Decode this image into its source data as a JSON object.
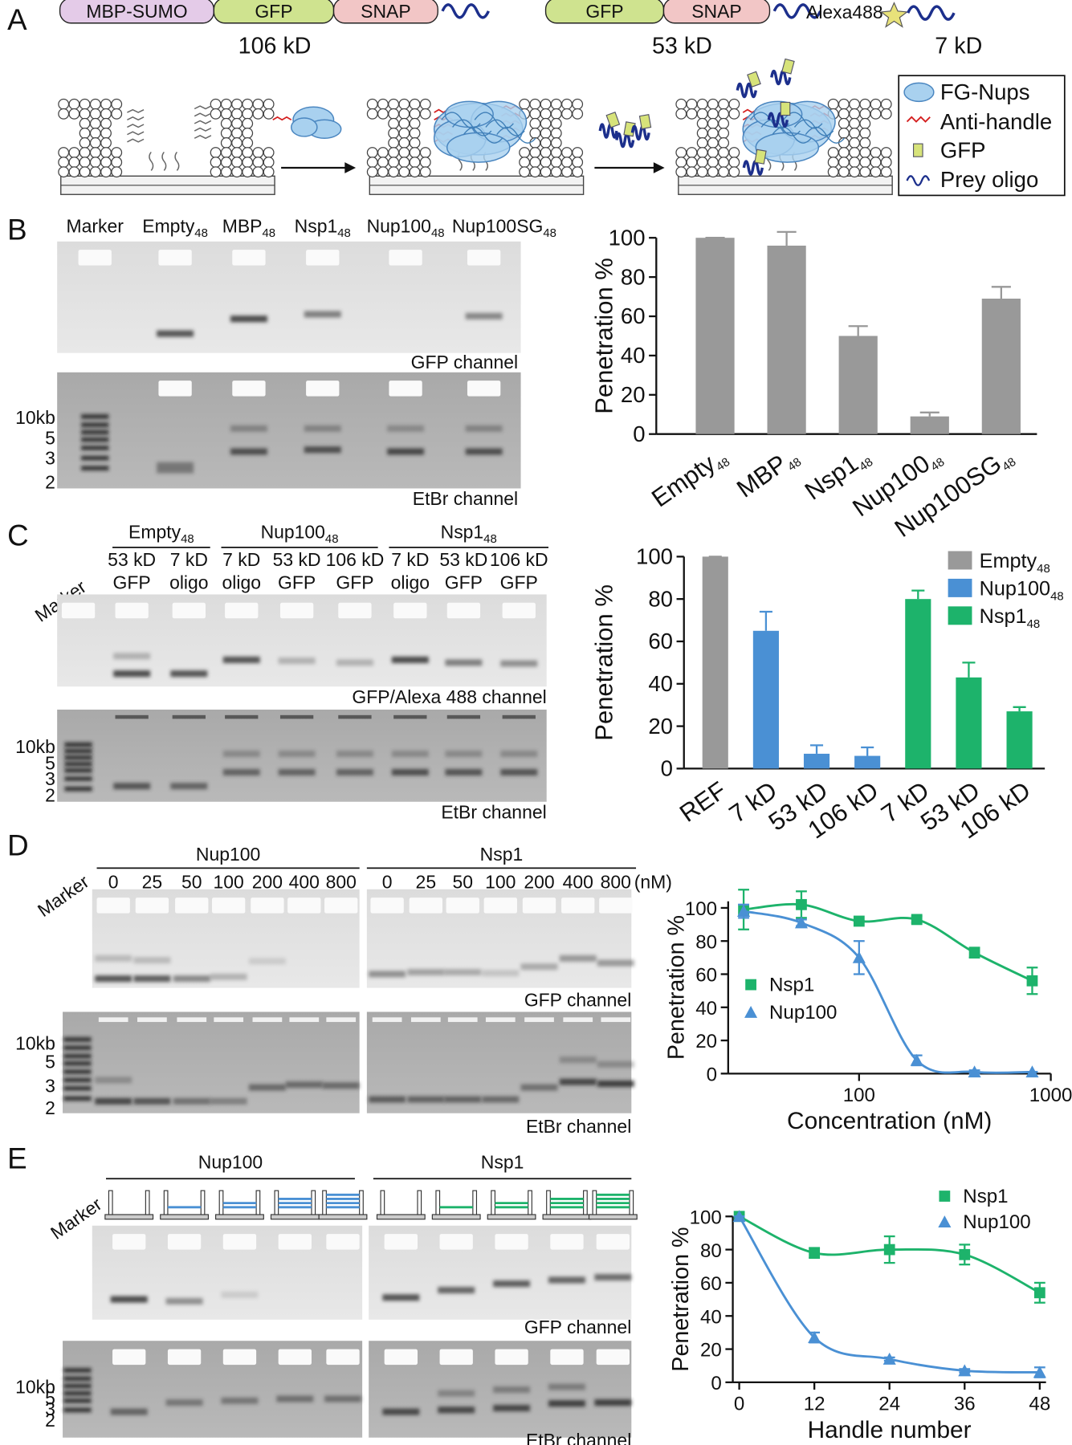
{
  "panels": [
    "A",
    "B",
    "C",
    "D",
    "E"
  ],
  "panel_a": {
    "constructs": [
      {
        "parts": [
          "MBP-SUMO",
          "GFP",
          "SNAP"
        ],
        "size": "106 kD"
      },
      {
        "parts": [
          "GFP",
          "SNAP"
        ],
        "size": "53 kD"
      },
      {
        "parts": [
          "Alexa488"
        ],
        "size": "7 kD"
      }
    ],
    "legend": [
      "FG-Nups",
      "Anti-handle",
      "GFP",
      "Prey oligo"
    ]
  },
  "gel_b": {
    "lanes": [
      {
        "name": "Marker"
      },
      {
        "name": "Empty",
        "sub": "48"
      },
      {
        "name": "MBP",
        "sub": "48"
      },
      {
        "name": "Nsp1",
        "sub": "48"
      },
      {
        "name": "Nup100",
        "sub": "48"
      },
      {
        "name": "Nup100SG",
        "sub": "48"
      }
    ],
    "channels": [
      "GFP channel",
      "EtBr channel"
    ],
    "marker_sizes": [
      "10kb",
      "5",
      "3",
      "2"
    ]
  },
  "gel_c": {
    "marker": "Marker",
    "groups": [
      {
        "name": "Empty",
        "sub": "48",
        "lanes": [
          [
            "53 kD",
            "GFP"
          ],
          [
            "7 kD",
            "oligo"
          ]
        ]
      },
      {
        "name": "Nup100",
        "sub": "48",
        "lanes": [
          [
            "7 kD",
            "oligo"
          ],
          [
            "53 kD",
            "GFP"
          ],
          [
            "106 kD",
            "GFP"
          ]
        ]
      },
      {
        "name": "Nsp1",
        "sub": "48",
        "lanes": [
          [
            "7 kD",
            "oligo"
          ],
          [
            "53 kD",
            "GFP"
          ],
          [
            "106 kD",
            "GFP"
          ]
        ]
      }
    ],
    "channels": [
      "GFP/Alexa 488 channel",
      "EtBr channel"
    ],
    "marker_sizes": [
      "10kb",
      "5",
      "3",
      "2"
    ]
  },
  "gel_d": {
    "marker": "Marker",
    "groups": [
      {
        "name": "Nup100",
        "concentrations": [
          0,
          25,
          50,
          100,
          200,
          400,
          800
        ]
      },
      {
        "name": "Nsp1",
        "concentrations": [
          0,
          25,
          50,
          100,
          200,
          400,
          800
        ]
      }
    ],
    "unit": "(nM)",
    "channels": [
      "GFP channel",
      "EtBr channel"
    ],
    "marker_sizes": [
      "10kb",
      "5",
      "3",
      "2"
    ]
  },
  "gel_e": {
    "marker": "Marker",
    "groups": [
      "Nup100",
      "Nsp1"
    ],
    "channels": [
      "GFP channel",
      "EtBr channel"
    ],
    "marker_sizes": [
      "10kb",
      "5",
      "3",
      "2"
    ]
  },
  "chart_data": [
    {
      "type": "bar",
      "ylabel": "Penetration %",
      "categories": [
        "Empty",
        "MBP",
        "Nsp1",
        "Nup100",
        "Nup100SG"
      ],
      "category_subscript": "48",
      "values": [
        100,
        96,
        50,
        9,
        69
      ],
      "errors": [
        0,
        7,
        5,
        2,
        6
      ],
      "color": "#999999",
      "ylim": [
        0,
        100
      ],
      "yticks": [
        0,
        20,
        40,
        60,
        80,
        100
      ]
    },
    {
      "type": "bar",
      "ylabel": "Penetration %",
      "categories": [
        "REF",
        "7 kD",
        "53 kD",
        "106 kD",
        "7 kD",
        "53 kD",
        "106 kD"
      ],
      "legend_subscript": "48",
      "series": [
        {
          "name": "Empty",
          "color": "#999999",
          "values": [
            100,
            null,
            null,
            null,
            null,
            null,
            null
          ],
          "errors": [
            0,
            null,
            null,
            null,
            null,
            null,
            null
          ]
        },
        {
          "name": "Nup100",
          "color": "#4a90d4",
          "values": [
            null,
            65,
            7,
            6,
            null,
            null,
            null
          ],
          "errors": [
            null,
            9,
            4,
            4,
            null,
            null,
            null
          ]
        },
        {
          "name": "Nsp1",
          "color": "#1db36b",
          "values": [
            null,
            null,
            null,
            null,
            80,
            43,
            27
          ],
          "errors": [
            null,
            null,
            null,
            null,
            4,
            7,
            2
          ]
        }
      ],
      "ylim": [
        0,
        100
      ],
      "yticks": [
        0,
        20,
        40,
        60,
        80,
        100
      ],
      "legend": "upper right"
    },
    {
      "type": "scatter",
      "ylabel": "Penetration %",
      "xlabel": "Concentration (nM)",
      "xscale": "log",
      "series": [
        {
          "name": "Nsp1",
          "color": "#1db36b",
          "marker": "square",
          "x": [
            25,
            50,
            100,
            200,
            400,
            800
          ],
          "values": [
            99,
            102,
            92,
            93,
            73,
            56
          ],
          "errors": [
            12,
            8,
            0,
            2,
            3,
            8
          ]
        },
        {
          "name": "Nup100",
          "color": "#4a90d4",
          "marker": "triangle",
          "x": [
            25,
            50,
            100,
            200,
            400,
            800
          ],
          "values": [
            98,
            91,
            70,
            8,
            1,
            1
          ],
          "errors": [
            4,
            2,
            10,
            3,
            1,
            0
          ]
        }
      ],
      "xlim": [
        20,
        1000
      ],
      "xticks": [
        100,
        1000
      ],
      "ylim": [
        0,
        104
      ],
      "yticks": [
        0,
        20,
        40,
        60,
        80,
        100
      ],
      "legend": "center left"
    },
    {
      "type": "scatter",
      "ylabel": "Penetration %",
      "xlabel": "Handle number",
      "series": [
        {
          "name": "Nsp1",
          "color": "#1db36b",
          "marker": "square",
          "x": [
            0,
            12,
            24,
            36,
            48
          ],
          "values": [
            100,
            78,
            80,
            77,
            54
          ],
          "errors": [
            0,
            3,
            8,
            6,
            6
          ]
        },
        {
          "name": "Nup100",
          "color": "#4a90d4",
          "marker": "triangle",
          "x": [
            0,
            12,
            24,
            36,
            48
          ],
          "values": [
            100,
            27,
            14,
            7,
            6
          ],
          "errors": [
            0,
            3,
            1,
            1,
            3
          ]
        }
      ],
      "xlim": [
        -1,
        49
      ],
      "xticks": [
        0,
        12,
        24,
        36,
        48
      ],
      "ylim": [
        0,
        100
      ],
      "yticks": [
        0,
        20,
        40,
        60,
        80,
        100
      ],
      "legend": "upper right"
    }
  ]
}
